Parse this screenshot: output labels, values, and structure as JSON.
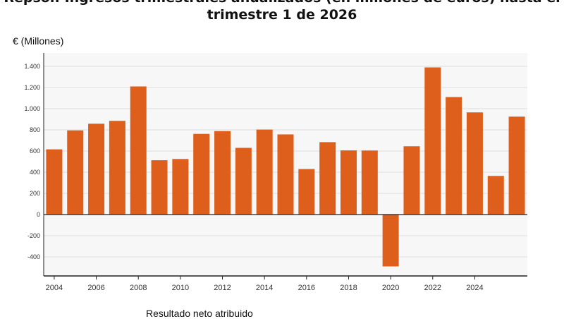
{
  "colors": {
    "bar": "#DE5F1C",
    "plot_bg": "#F7F7F7",
    "grid": "#DCDCDC",
    "axis": "#222222"
  },
  "chart_data": {
    "type": "bar",
    "title_lines": [
      "Repsol: Ingresos trimestrales anualizados (en millones de euros) hasta el",
      "trimestre 1 de 2026"
    ],
    "ylabel": "€ (Millones)",
    "xlabel": "",
    "legend": "Resultado neto atribuido",
    "grid": true,
    "ylim": [
      -600,
      1500
    ],
    "yticks": [
      -400,
      -200,
      0,
      200,
      400,
      600,
      800,
      1000,
      1200,
      1400
    ],
    "ytick_labels": [
      "-400",
      "-200",
      "0",
      "200",
      "400",
      "600",
      "800",
      "1.000",
      "1.200",
      "1.400"
    ],
    "xtick_labels": [
      "2004",
      "2006",
      "2008",
      "2010",
      "2012",
      "2014",
      "2016",
      "2018",
      "2020",
      "2022",
      "2024"
    ],
    "categories": [
      "2004",
      "2005",
      "2006",
      "2007",
      "2008",
      "2009",
      "2010",
      "2011",
      "2012",
      "2013",
      "2014",
      "2015",
      "2016",
      "2017",
      "2018",
      "2019",
      "2020",
      "2021",
      "2022",
      "2023",
      "2024",
      "2025",
      "2026"
    ],
    "values": [
      616,
      795,
      858,
      885,
      1210,
      513,
      525,
      762,
      788,
      630,
      803,
      757,
      430,
      684,
      606,
      605,
      -490,
      645,
      1390,
      1110,
      965,
      365,
      925
    ]
  }
}
